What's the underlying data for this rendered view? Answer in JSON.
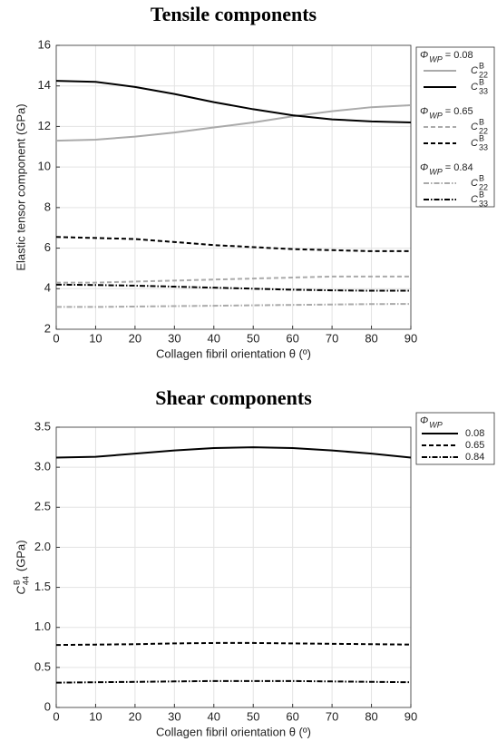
{
  "chart_data": [
    {
      "type": "line",
      "title": "Tensile components",
      "xlabel": "Collagen fibril orientation θ (º)",
      "ylabel": "Elastic tensor component (GPa)",
      "x": [
        0,
        10,
        20,
        30,
        40,
        50,
        60,
        70,
        80,
        90
      ],
      "xlim": [
        0,
        90
      ],
      "xticks": [
        0,
        10,
        20,
        30,
        40,
        50,
        60,
        70,
        80,
        90
      ],
      "ylim": [
        2,
        16
      ],
      "yticks": [
        2,
        4,
        6,
        8,
        10,
        12,
        14,
        16
      ],
      "grid": true,
      "legend_groups": [
        {
          "symbol": "Φ",
          "sub": "WP",
          "text": "= 0.08"
        },
        {
          "symbol": "Φ",
          "sub": "WP",
          "text": "= 0.65"
        },
        {
          "symbol": "Φ",
          "sub": "WP",
          "text": "= 0.84"
        }
      ],
      "series": [
        {
          "name": {
            "symbol": "C",
            "sup": "B",
            "sub": "22"
          },
          "group": 0,
          "color": "#aaaaaa",
          "dash": "solid",
          "values": [
            11.3,
            11.35,
            11.5,
            11.7,
            11.95,
            12.2,
            12.5,
            12.75,
            12.95,
            13.05
          ]
        },
        {
          "name": {
            "symbol": "C",
            "sup": "B",
            "sub": "33"
          },
          "group": 0,
          "color": "#000000",
          "dash": "solid",
          "values": [
            14.25,
            14.2,
            13.95,
            13.6,
            13.2,
            12.85,
            12.55,
            12.35,
            12.25,
            12.2
          ]
        },
        {
          "name": {
            "symbol": "C",
            "sup": "B",
            "sub": "22"
          },
          "group": 1,
          "color": "#aaaaaa",
          "dash": "dashed",
          "values": [
            4.3,
            4.3,
            4.35,
            4.4,
            4.45,
            4.5,
            4.55,
            4.6,
            4.6,
            4.6
          ]
        },
        {
          "name": {
            "symbol": "C",
            "sup": "B",
            "sub": "33"
          },
          "group": 1,
          "color": "#000000",
          "dash": "dashed",
          "values": [
            6.55,
            6.5,
            6.45,
            6.3,
            6.15,
            6.05,
            5.95,
            5.9,
            5.85,
            5.85
          ]
        },
        {
          "name": {
            "symbol": "C",
            "sup": "B",
            "sub": "22"
          },
          "group": 2,
          "color": "#aaaaaa",
          "dash": "dashdot",
          "values": [
            3.1,
            3.1,
            3.12,
            3.14,
            3.16,
            3.18,
            3.2,
            3.22,
            3.24,
            3.25
          ]
        },
        {
          "name": {
            "symbol": "C",
            "sup": "B",
            "sub": "33"
          },
          "group": 2,
          "color": "#000000",
          "dash": "dashdot",
          "values": [
            4.2,
            4.18,
            4.15,
            4.1,
            4.05,
            4.0,
            3.95,
            3.92,
            3.9,
            3.9
          ]
        }
      ]
    },
    {
      "type": "line",
      "title": "Shear components",
      "xlabel": "Collagen fibril orientation θ (º)",
      "ylabel": {
        "symbol": "C",
        "sup": "B",
        "sub": "44",
        "unit": "(GPa)"
      },
      "x": [
        0,
        10,
        20,
        30,
        40,
        50,
        60,
        70,
        80,
        90
      ],
      "xlim": [
        0,
        90
      ],
      "xticks": [
        0,
        10,
        20,
        30,
        40,
        50,
        60,
        70,
        80,
        90
      ],
      "ylim": [
        0,
        3.5
      ],
      "yticks": [
        0,
        0.5,
        {
          "value": 1,
          "label": "1.0"
        },
        1.5,
        {
          "value": 2,
          "label": "2.0"
        },
        2.5,
        {
          "value": 3,
          "label": "3.0"
        },
        3.5
      ],
      "grid": true,
      "legend_title": {
        "symbol": "Φ",
        "sub": "WP"
      },
      "series": [
        {
          "name": "0.08",
          "color": "#000000",
          "dash": "solid",
          "values": [
            3.12,
            3.13,
            3.17,
            3.21,
            3.24,
            3.25,
            3.24,
            3.21,
            3.17,
            3.12
          ]
        },
        {
          "name": "0.65",
          "color": "#000000",
          "dash": "dashed",
          "values": [
            0.78,
            0.785,
            0.79,
            0.8,
            0.805,
            0.805,
            0.8,
            0.795,
            0.79,
            0.785
          ]
        },
        {
          "name": "0.84",
          "color": "#000000",
          "dash": "dashdot",
          "values": [
            0.31,
            0.315,
            0.32,
            0.325,
            0.33,
            0.33,
            0.33,
            0.325,
            0.32,
            0.315
          ]
        }
      ]
    }
  ]
}
